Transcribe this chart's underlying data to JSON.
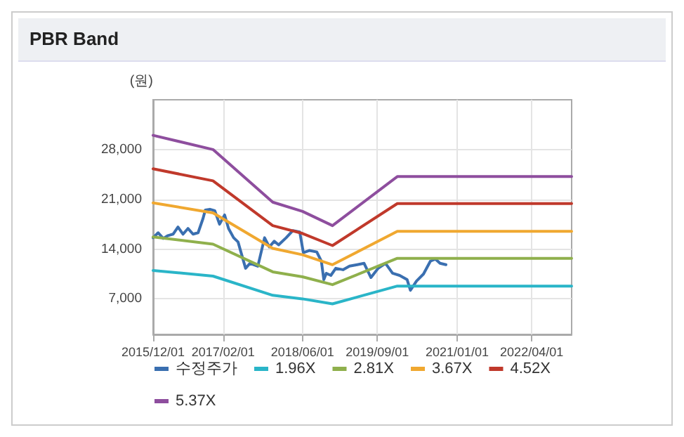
{
  "chart_data": {
    "type": "line",
    "title": "PBR Band",
    "ylabel": "(원)",
    "xlim": [
      "2015-12-01",
      "2022-12-01"
    ],
    "xticks": [
      {
        "value": "2015-12-01",
        "label": "2015/12/01"
      },
      {
        "value": "2017-02-01",
        "label": "2017/02/01"
      },
      {
        "value": "2018-06-01",
        "label": "2018/06/01"
      },
      {
        "value": "2019-09-01",
        "label": "2019/09/01"
      },
      {
        "value": "2021-01-01",
        "label": "2021/01/01"
      },
      {
        "value": "2022-04-01",
        "label": "2022/04/01"
      }
    ],
    "ylim": [
      2000,
      35000
    ],
    "yticks": [
      {
        "value": 7000,
        "label": "7,000"
      },
      {
        "value": 14000,
        "label": "14,000"
      },
      {
        "value": 21000,
        "label": "21,000"
      },
      {
        "value": 28000,
        "label": "28,000"
      }
    ],
    "grid": true,
    "legend": "bottom",
    "marker": "none",
    "line_style": "solid",
    "series": [
      {
        "name": "수정주가",
        "color": "#3a6fb0",
        "x": [
          "2015-12-01",
          "2016-01-01",
          "2016-02-01",
          "2016-03-01",
          "2016-04-01",
          "2016-05-01",
          "2016-06-01",
          "2016-07-01",
          "2016-08-01",
          "2016-09-01",
          "2016-10-01",
          "2016-10-15",
          "2016-11-12",
          "2016-12-12",
          "2017-01-10",
          "2017-02-10",
          "2017-03-06",
          "2017-04-06",
          "2017-05-03",
          "2017-06-18",
          "2017-07-15",
          "2017-09-01",
          "2017-10-12",
          "2017-11-10",
          "2017-12-10",
          "2018-01-06",
          "2018-02-21",
          "2018-04-03",
          "2018-05-15",
          "2018-06-06",
          "2018-07-12",
          "2018-08-27",
          "2018-09-24",
          "2018-10-09",
          "2018-10-24",
          "2018-11-21",
          "2018-12-21",
          "2019-02-03",
          "2019-03-15",
          "2019-05-01",
          "2019-06-12",
          "2019-07-24",
          "2019-09-06",
          "2019-10-21",
          "2019-12-03",
          "2020-01-15",
          "2020-03-01",
          "2020-03-21",
          "2020-04-27",
          "2020-06-09",
          "2020-07-21",
          "2020-08-21",
          "2020-09-18",
          "2020-10-24"
        ],
        "values": [
          15600,
          16300,
          15500,
          15900,
          16100,
          17100,
          16100,
          16900,
          16100,
          16300,
          18300,
          19500,
          19600,
          19400,
          17500,
          18800,
          16900,
          15600,
          15000,
          11300,
          12000,
          11600,
          15600,
          14300,
          15100,
          14600,
          15600,
          16600,
          16400,
          13500,
          13800,
          13600,
          12300,
          9700,
          10600,
          10300,
          11300,
          11100,
          11600,
          11800,
          12000,
          10000,
          11300,
          12000,
          10600,
          10300,
          9700,
          8200,
          9500,
          10500,
          12300,
          12600,
          12000,
          11800
        ]
      },
      {
        "name": "1.96X",
        "color": "#2ab5c8",
        "x": [
          "2015-12-01",
          "2016-12-01",
          "2017-12-01",
          "2018-06-01",
          "2018-12-01",
          "2020-01-01",
          "2022-12-01"
        ],
        "values": [
          11000,
          10200,
          7500,
          7000,
          6300,
          8800,
          8800
        ]
      },
      {
        "name": "2.81X",
        "color": "#8fb04c",
        "x": [
          "2015-12-01",
          "2016-12-01",
          "2017-12-01",
          "2018-06-01",
          "2018-12-01",
          "2020-01-01",
          "2022-12-01"
        ],
        "values": [
          15700,
          14700,
          10800,
          10100,
          9000,
          12700,
          12700
        ]
      },
      {
        "name": "3.67X",
        "color": "#f0a830",
        "x": [
          "2015-12-01",
          "2016-12-01",
          "2017-12-01",
          "2018-06-01",
          "2018-12-01",
          "2020-01-01",
          "2022-12-01"
        ],
        "values": [
          20500,
          19100,
          14100,
          13200,
          11800,
          16500,
          16500
        ]
      },
      {
        "name": "4.52X",
        "color": "#c0392b",
        "x": [
          "2015-12-01",
          "2016-12-01",
          "2017-12-01",
          "2018-06-01",
          "2018-12-01",
          "2020-01-01",
          "2022-12-01"
        ],
        "values": [
          25300,
          23600,
          17300,
          16200,
          14500,
          20400,
          20400
        ]
      },
      {
        "name": "5.37X",
        "color": "#8e4e9e",
        "x": [
          "2015-12-01",
          "2016-12-01",
          "2017-12-01",
          "2018-06-01",
          "2018-12-01",
          "2020-01-01",
          "2022-12-01"
        ],
        "values": [
          30000,
          28000,
          20600,
          19300,
          17300,
          24200,
          24200
        ]
      }
    ]
  }
}
